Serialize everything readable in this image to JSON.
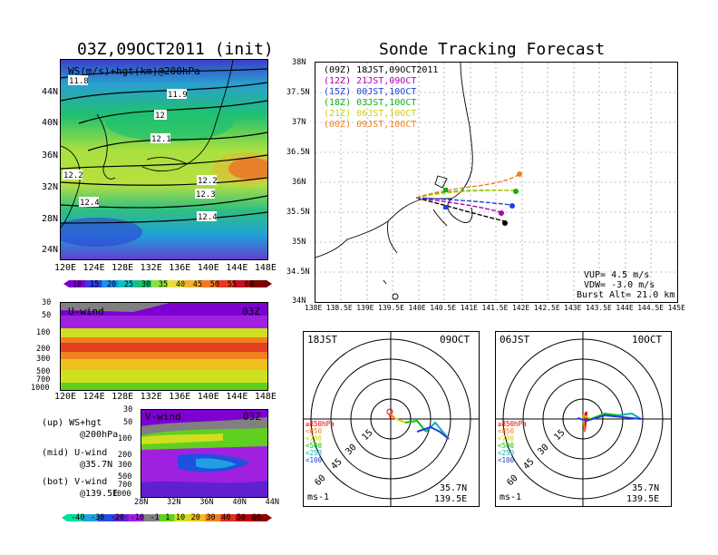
{
  "left": {
    "title": "03Z,09OCT2011 (init)",
    "map_label": "WS(m/s)+hgt(km)@200hPa",
    "map_lat_ticks": [
      "44N",
      "40N",
      "36N",
      "32N",
      "28N",
      "24N"
    ],
    "map_lon_ticks": [
      "120E",
      "124E",
      "128E",
      "132E",
      "136E",
      "140E",
      "144E",
      "148E"
    ],
    "contour_labels": [
      "11.8",
      "11.9",
      "12",
      "12.1",
      "12.2",
      "12.3",
      "12.4",
      "12.3",
      "12.4",
      "12.2"
    ],
    "ws_colorbar": {
      "labels": [
        "10",
        "15",
        "20",
        "25",
        "30",
        "35",
        "40",
        "45",
        "50",
        "55",
        "60"
      ],
      "colors": [
        "#7d00d0",
        "#2f3fd8",
        "#1e90e6",
        "#10c0c0",
        "#20c070",
        "#8ee040",
        "#e8e040",
        "#f0b030",
        "#f07a20",
        "#e83a20",
        "#c01020",
        "#800000"
      ]
    },
    "uwind": {
      "label": "U-wind",
      "time": "03Z",
      "p_ticks": [
        "30",
        "50",
        "100",
        "200",
        "300",
        "500",
        "700",
        "1000"
      ],
      "lon_ticks": [
        "120E",
        "124E",
        "128E",
        "132E",
        "136E",
        "140E",
        "144E",
        "148E"
      ]
    },
    "vwind": {
      "label": "V-wind",
      "time": "03Z",
      "p_ticks": [
        "30",
        "50",
        "100",
        "200",
        "300",
        "500",
        "700",
        "1000"
      ],
      "lat_ticks": [
        "28N",
        "32N",
        "36N",
        "40N",
        "44N"
      ]
    },
    "legend": [
      {
        "a": "(up) WS+hgt",
        "b": "@200hPa"
      },
      {
        "a": "(mid) U-wind",
        "b": "@35.7N"
      },
      {
        "a": "(bot) V-wind",
        "b": "@139.5E"
      }
    ],
    "wind_colorbar": {
      "labels": [
        "-40",
        "-30",
        "-20",
        "-10",
        "-1",
        "1",
        "10",
        "20",
        "30",
        "40",
        "50",
        "60"
      ],
      "colors": [
        "#00e0a0",
        "#20a0e0",
        "#2050e0",
        "#6020d0",
        "#a020e0",
        "#808080",
        "#60d020",
        "#d0e020",
        "#f0c020",
        "#f08020",
        "#e03020",
        "#c00010",
        "#900000"
      ]
    }
  },
  "right": {
    "title": "Sonde Tracking Forecast",
    "lat_ticks": [
      "38N",
      "37.5N",
      "37N",
      "36.5N",
      "36N",
      "35.5N",
      "35N",
      "34.5N",
      "34N"
    ],
    "lon_ticks": [
      "138E",
      "138.5E",
      "139E",
      "139.5E",
      "140E",
      "140.5E",
      "141E",
      "141.5E",
      "142E",
      "142.5E",
      "143E",
      "143.5E",
      "144E",
      "144.5E",
      "145E"
    ],
    "launches": [
      {
        "utc": "(09Z)",
        "jst": "18JST,09OCT2011",
        "color": "#000000"
      },
      {
        "utc": "(12Z)",
        "jst": "21JST,09OCT",
        "color": "#b000b0"
      },
      {
        "utc": "(15Z)",
        "jst": "00JST,10OCT",
        "color": "#2040e0"
      },
      {
        "utc": "(18Z)",
        "jst": "03JST,10OCT",
        "color": "#10b010"
      },
      {
        "utc": "(21Z)",
        "jst": "06JST,10OCT",
        "color": "#d0d000"
      },
      {
        "utc": "(00Z)",
        "jst": "09JST,10OCT",
        "color": "#f08020"
      }
    ],
    "params": {
      "vup": "VUP= 4.5 m/s",
      "vdw": "VDW= -3.0 m/s",
      "burst": "Burst Alt= 21.0 km"
    }
  },
  "polar_left": {
    "time": "18JST",
    "date": "09OCT",
    "ring_labels": [
      "15",
      "30",
      "45",
      "60"
    ],
    "levels": [
      "≥850hPa",
      "<850",
      "<700",
      "<500",
      "<250",
      "<100"
    ],
    "level_colors": [
      "#e00000",
      "#f08020",
      "#d0d000",
      "#10c010",
      "#10b0b0",
      "#2040e0"
    ],
    "lat": "35.7N",
    "lon": "139.5E",
    "unit": "ms-1"
  },
  "polar_right": {
    "time": "06JST",
    "date": "10OCT",
    "ring_labels": [
      "15",
      "30",
      "45",
      "60"
    ],
    "levels": [
      "≥850hPa",
      "<850",
      "<700",
      "<500",
      "<250",
      "<100"
    ],
    "level_colors": [
      "#e00000",
      "#f08020",
      "#d0d000",
      "#10c010",
      "#10b0b0",
      "#2040e0"
    ],
    "lat": "35.7N",
    "lon": "139.5E",
    "unit": "ms-1"
  }
}
